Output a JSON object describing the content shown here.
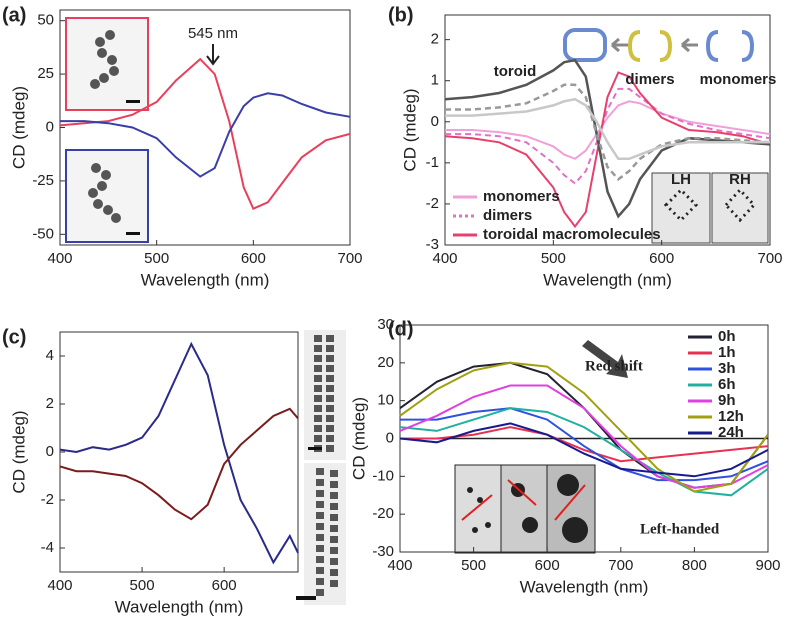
{
  "chart_data": [
    {
      "type": "line",
      "label": "(a)",
      "xlabel": "Wavelength (nm)",
      "ylabel": "CD (mdeg)",
      "xlim": [
        400,
        700
      ],
      "ylim": [
        -55,
        55
      ],
      "xticks": [
        400,
        500,
        600,
        700
      ],
      "yticks": [
        -50,
        -25,
        0,
        25,
        50
      ],
      "x": [
        400,
        425,
        450,
        475,
        500,
        520,
        545,
        560,
        575,
        590,
        600,
        615,
        630,
        650,
        675,
        700
      ],
      "series": [
        {
          "color": "#e8405c",
          "values": [
            1,
            2,
            3,
            6,
            12,
            22,
            32,
            25,
            3,
            -28,
            -38,
            -35,
            -26,
            -14,
            -6,
            -3
          ]
        },
        {
          "color": "#3a3ea8",
          "values": [
            3,
            3,
            2,
            0,
            -5,
            -14,
            -23,
            -19,
            -2,
            10,
            14,
            16,
            15,
            11,
            7,
            5
          ]
        }
      ],
      "annotations": [
        "545 nm"
      ]
    },
    {
      "type": "line",
      "label": "(b)",
      "xlabel": "Wavelength (nm)",
      "ylabel": "CD (mdeg)",
      "xlim": [
        400,
        700
      ],
      "ylim": [
        -3,
        2.6
      ],
      "xticks": [
        400,
        500,
        600,
        700
      ],
      "yticks": [
        -3,
        -2,
        -1,
        0,
        1,
        2
      ],
      "legend": "lower left",
      "x": [
        400,
        425,
        450,
        475,
        500,
        510,
        520,
        530,
        540,
        550,
        560,
        570,
        580,
        600,
        625,
        650,
        675,
        700
      ],
      "series": [
        {
          "name": "monomers",
          "color": "#f0a0d8",
          "values": [
            -0.2,
            -0.2,
            -0.25,
            -0.35,
            -0.6,
            -0.8,
            -0.9,
            -0.7,
            -0.3,
            0.1,
            0.4,
            0.5,
            0.45,
            0.2,
            0.0,
            -0.1,
            -0.2,
            -0.3
          ]
        },
        {
          "name": "dimers",
          "color": "#e070c8",
          "dashed": true,
          "values": [
            -0.3,
            -0.3,
            -0.35,
            -0.5,
            -1.0,
            -1.3,
            -1.5,
            -1.2,
            -0.5,
            0.3,
            0.8,
            0.8,
            0.6,
            0.2,
            -0.05,
            -0.2,
            -0.3,
            -0.4
          ]
        },
        {
          "name": "toroidal macromolecules",
          "color": "#e8406c",
          "values": [
            -0.35,
            -0.4,
            -0.5,
            -0.8,
            -1.6,
            -2.2,
            -2.55,
            -2.2,
            -0.8,
            0.6,
            1.2,
            1.1,
            0.7,
            0.1,
            -0.2,
            -0.25,
            -0.35,
            -0.55
          ]
        },
        {
          "color": "#555555",
          "values": [
            0.55,
            0.6,
            0.7,
            0.9,
            1.25,
            1.45,
            1.5,
            1.1,
            -0.3,
            -1.7,
            -2.3,
            -2.0,
            -1.4,
            -0.7,
            -0.4,
            -0.45,
            -0.5,
            -0.55
          ]
        },
        {
          "color": "#999999",
          "dashed": true,
          "values": [
            0.3,
            0.3,
            0.35,
            0.45,
            0.75,
            0.9,
            0.9,
            0.6,
            -0.3,
            -1.1,
            -1.4,
            -1.2,
            -0.9,
            -0.55,
            -0.4,
            -0.4,
            -0.45,
            -0.5
          ]
        },
        {
          "color": "#c8c8c8",
          "values": [
            0.15,
            0.15,
            0.2,
            0.25,
            0.4,
            0.5,
            0.55,
            0.4,
            0,
            -0.5,
            -0.9,
            -0.9,
            -0.8,
            -0.6,
            -0.5,
            -0.5,
            -0.5,
            -0.5
          ]
        }
      ],
      "annotations": [
        "toroid",
        "dimers",
        "monomers",
        "LH",
        "RH"
      ]
    },
    {
      "type": "line",
      "label": "(c)",
      "xlabel": "Wavelength (nm)",
      "ylabel": "CD (mdeg)",
      "xlim": [
        400,
        690
      ],
      "ylim": [
        -5,
        5
      ],
      "xticks": [
        400,
        500,
        600
      ],
      "yticks": [
        -4,
        -2,
        0,
        2,
        4
      ],
      "x": [
        400,
        420,
        440,
        460,
        480,
        500,
        520,
        540,
        560,
        580,
        600,
        620,
        640,
        660,
        680,
        690
      ],
      "series": [
        {
          "color": "#2a2a8a",
          "values": [
            0.1,
            0.0,
            0.2,
            0.1,
            0.3,
            0.6,
            1.5,
            3.0,
            4.5,
            3.2,
            0.3,
            -2.0,
            -3.2,
            -4.6,
            -3.5,
            -4.2
          ]
        },
        {
          "color": "#7a1c1c",
          "values": [
            -0.6,
            -0.8,
            -0.8,
            -0.9,
            -1.0,
            -1.3,
            -1.8,
            -2.4,
            -2.8,
            -2.2,
            -0.5,
            0.3,
            0.9,
            1.5,
            1.8,
            1.4
          ]
        }
      ],
      "annotations": []
    },
    {
      "type": "line",
      "label": "(d)",
      "xlabel": "Wavelength (nm)",
      "ylabel": "CD (mdeg)",
      "xlim": [
        400,
        900
      ],
      "ylim": [
        -30,
        30
      ],
      "xticks": [
        400,
        500,
        600,
        700,
        800,
        900
      ],
      "yticks": [
        -30,
        -20,
        -10,
        0,
        10,
        20,
        30
      ],
      "legend": "upper right",
      "x": [
        400,
        450,
        500,
        550,
        600,
        650,
        700,
        750,
        800,
        850,
        900
      ],
      "series": [
        {
          "name": "0h",
          "color": "#222233",
          "values": [
            8,
            15,
            19,
            20,
            17,
            8,
            -3,
            -10,
            -13,
            -12,
            1
          ]
        },
        {
          "name": "1h",
          "color": "#e83050",
          "values": [
            0,
            0,
            1,
            3,
            1,
            -3,
            -6,
            -5,
            -4,
            -3,
            -2
          ]
        },
        {
          "name": "3h",
          "color": "#3050e0",
          "values": [
            5,
            5,
            7,
            8,
            5,
            -2,
            -8,
            -11,
            -11,
            -10,
            -6
          ]
        },
        {
          "name": "6h",
          "color": "#20b0a0",
          "values": [
            3,
            2,
            5,
            8,
            7,
            3,
            -3,
            -9,
            -14,
            -15,
            -8
          ]
        },
        {
          "name": "9h",
          "color": "#e040e0",
          "values": [
            2,
            6,
            11,
            14,
            14,
            8,
            -2,
            -10,
            -13,
            -12,
            -7
          ]
        },
        {
          "name": "12h",
          "color": "#a0a010",
          "values": [
            6,
            13,
            18,
            20,
            19,
            12,
            2,
            -8,
            -14,
            -12,
            1
          ]
        },
        {
          "name": "24h",
          "color": "#1a1a90",
          "values": [
            0,
            -1,
            2,
            4,
            1,
            -4,
            -8,
            -9,
            -10,
            -8,
            -3
          ]
        }
      ],
      "annotations": [
        "Red shift",
        "Left-handed"
      ]
    }
  ]
}
